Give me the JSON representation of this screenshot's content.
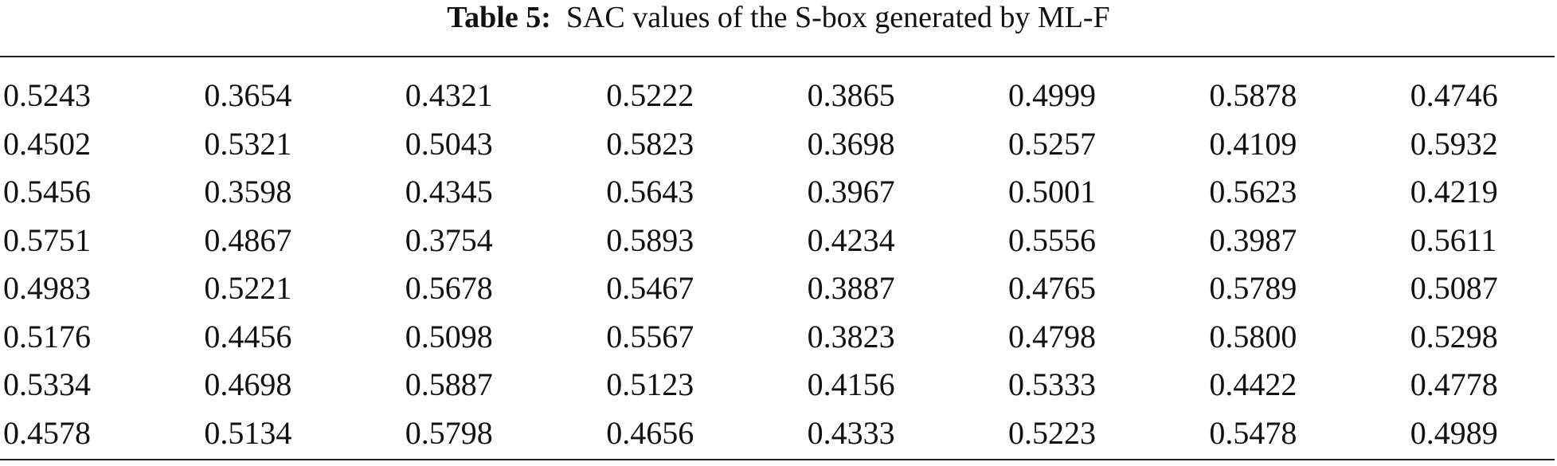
{
  "caption": {
    "label": "Table 5:",
    "text": "SAC values of the S-box generated by ML-F"
  },
  "table": {
    "rows": [
      [
        "0.5243",
        "0.3654",
        "0.4321",
        "0.5222",
        "0.3865",
        "0.4999",
        "0.5878",
        "0.4746"
      ],
      [
        "0.4502",
        "0.5321",
        "0.5043",
        "0.5823",
        "0.3698",
        "0.5257",
        "0.4109",
        "0.5932"
      ],
      [
        "0.5456",
        "0.3598",
        "0.4345",
        "0.5643",
        "0.3967",
        "0.5001",
        "0.5623",
        "0.4219"
      ],
      [
        "0.5751",
        "0.4867",
        "0.3754",
        "0.5893",
        "0.4234",
        "0.5556",
        "0.3987",
        "0.5611"
      ],
      [
        "0.4983",
        "0.5221",
        "0.5678",
        "0.5467",
        "0.3887",
        "0.4765",
        "0.5789",
        "0.5087"
      ],
      [
        "0.5176",
        "0.4456",
        "0.5098",
        "0.5567",
        "0.3823",
        "0.4798",
        "0.5800",
        "0.5298"
      ],
      [
        "0.5334",
        "0.4698",
        "0.5887",
        "0.5123",
        "0.4156",
        "0.5333",
        "0.4422",
        "0.4778"
      ],
      [
        "0.4578",
        "0.5134",
        "0.5798",
        "0.4656",
        "0.4333",
        "0.5223",
        "0.5478",
        "0.4989"
      ]
    ]
  }
}
